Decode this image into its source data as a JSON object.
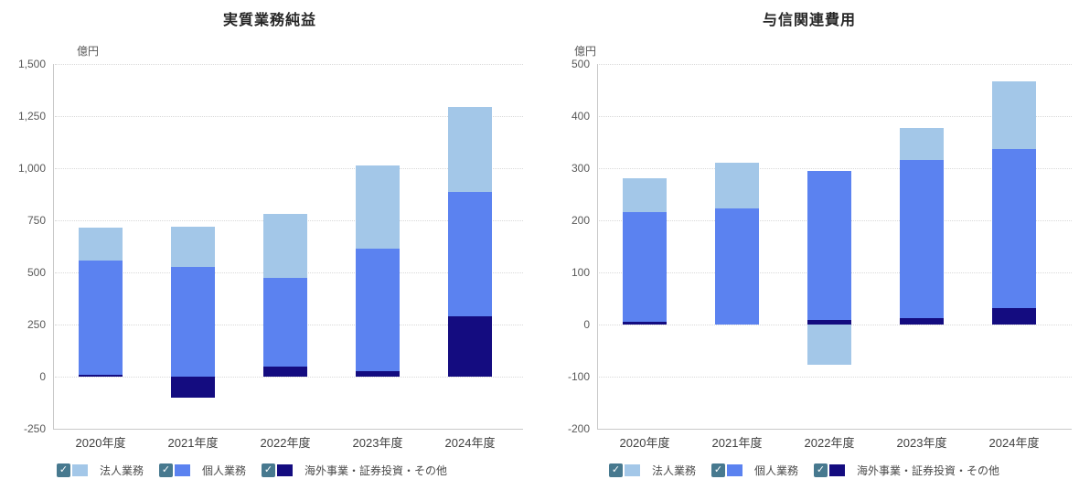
{
  "colors": {
    "background": "#ffffff",
    "grid": "#d9d9d9",
    "axis": "#c9c9c9",
    "tick_text": "#595959",
    "x_label_text": "#3f3f3f",
    "title_text": "#262626",
    "legend_text": "#4a4a4a",
    "checkbox": "#47798f",
    "series_corporate": "#a3c7e8",
    "series_personal": "#5b82f0",
    "series_overseas": "#140c80"
  },
  "icons": {
    "checkmark": "✓"
  },
  "chart_data": [
    {
      "type": "bar",
      "stacked": true,
      "title": "実質業務純益",
      "unit_label": "億円",
      "categories": [
        "2020年度",
        "2021年度",
        "2022年度",
        "2023年度",
        "2024年度"
      ],
      "series": [
        {
          "name": "法人業務",
          "color": "#a3c7e8",
          "values": [
            160,
            195,
            305,
            400,
            410
          ]
        },
        {
          "name": "個人業務",
          "color": "#5b82f0",
          "values": [
            545,
            525,
            425,
            590,
            595
          ]
        },
        {
          "name": "海外事業・証券投資・その他",
          "color": "#140c80",
          "values": [
            10,
            -100,
            50,
            25,
            290
          ]
        }
      ],
      "stack_totals": [
        715,
        720,
        780,
        1015,
        1295
      ],
      "ylim": [
        -250,
        1500
      ],
      "ytick_step": 250,
      "ytick_labels": [
        "1,500",
        "1,250",
        "1,000",
        "750",
        "500",
        "250",
        "0",
        "-250"
      ],
      "grid": "dotted-horizontal",
      "legend_position": "bottom",
      "legend_checked": [
        true,
        true,
        true
      ]
    },
    {
      "type": "bar",
      "stacked": true,
      "title": "与信関連費用",
      "unit_label": "億円",
      "categories": [
        "2020年度",
        "2021年度",
        "2022年度",
        "2023年度",
        "2024年度"
      ],
      "series": [
        {
          "name": "法人業務",
          "color": "#a3c7e8",
          "values": [
            65,
            88,
            -78,
            62,
            130
          ]
        },
        {
          "name": "個人業務",
          "color": "#5b82f0",
          "values": [
            210,
            222,
            285,
            303,
            305
          ]
        },
        {
          "name": "海外事業・証券投資・その他",
          "color": "#140c80",
          "values": [
            5,
            0,
            9,
            12,
            32
          ]
        }
      ],
      "stack_totals": [
        280,
        310,
        294,
        377,
        467
      ],
      "ylim": [
        -200,
        500
      ],
      "ytick_step": 100,
      "ytick_labels": [
        "500",
        "400",
        "300",
        "200",
        "100",
        "0",
        "-100",
        "-200"
      ],
      "grid": "dotted-horizontal",
      "legend_position": "bottom",
      "legend_checked": [
        true,
        true,
        true
      ]
    }
  ]
}
